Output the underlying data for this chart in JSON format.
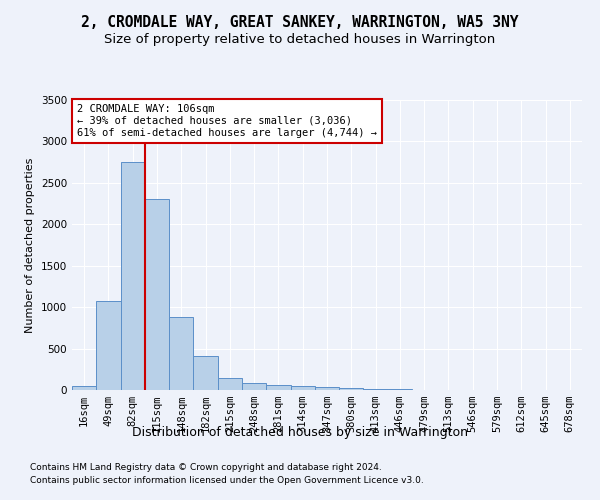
{
  "title": "2, CROMDALE WAY, GREAT SANKEY, WARRINGTON, WA5 3NY",
  "subtitle": "Size of property relative to detached houses in Warrington",
  "xlabel": "Distribution of detached houses by size in Warrington",
  "ylabel": "Number of detached properties",
  "footnote1": "Contains HM Land Registry data © Crown copyright and database right 2024.",
  "footnote2": "Contains public sector information licensed under the Open Government Licence v3.0.",
  "categories": [
    "16sqm",
    "49sqm",
    "82sqm",
    "115sqm",
    "148sqm",
    "182sqm",
    "215sqm",
    "248sqm",
    "281sqm",
    "314sqm",
    "347sqm",
    "380sqm",
    "413sqm",
    "446sqm",
    "479sqm",
    "513sqm",
    "546sqm",
    "579sqm",
    "612sqm",
    "645sqm",
    "678sqm"
  ],
  "values": [
    50,
    1080,
    2750,
    2300,
    880,
    410,
    150,
    90,
    55,
    45,
    35,
    25,
    15,
    8,
    5,
    3,
    2,
    1,
    1,
    0,
    0
  ],
  "bar_color": "#b8d0e8",
  "bar_edge_color": "#5b8fc9",
  "annotation_box_text": "2 CROMDALE WAY: 106sqm\n← 39% of detached houses are smaller (3,036)\n61% of semi-detached houses are larger (4,744) →",
  "property_line_x": 2.5,
  "vline_color": "#cc0000",
  "annotation_box_edge_color": "#cc0000",
  "ylim": [
    0,
    3500
  ],
  "yticks": [
    0,
    500,
    1000,
    1500,
    2000,
    2500,
    3000,
    3500
  ],
  "background_color": "#eef2fa",
  "grid_color": "#ffffff",
  "title_fontsize": 10.5,
  "subtitle_fontsize": 9.5,
  "tick_fontsize": 7.5,
  "ylabel_fontsize": 8,
  "xlabel_fontsize": 9
}
